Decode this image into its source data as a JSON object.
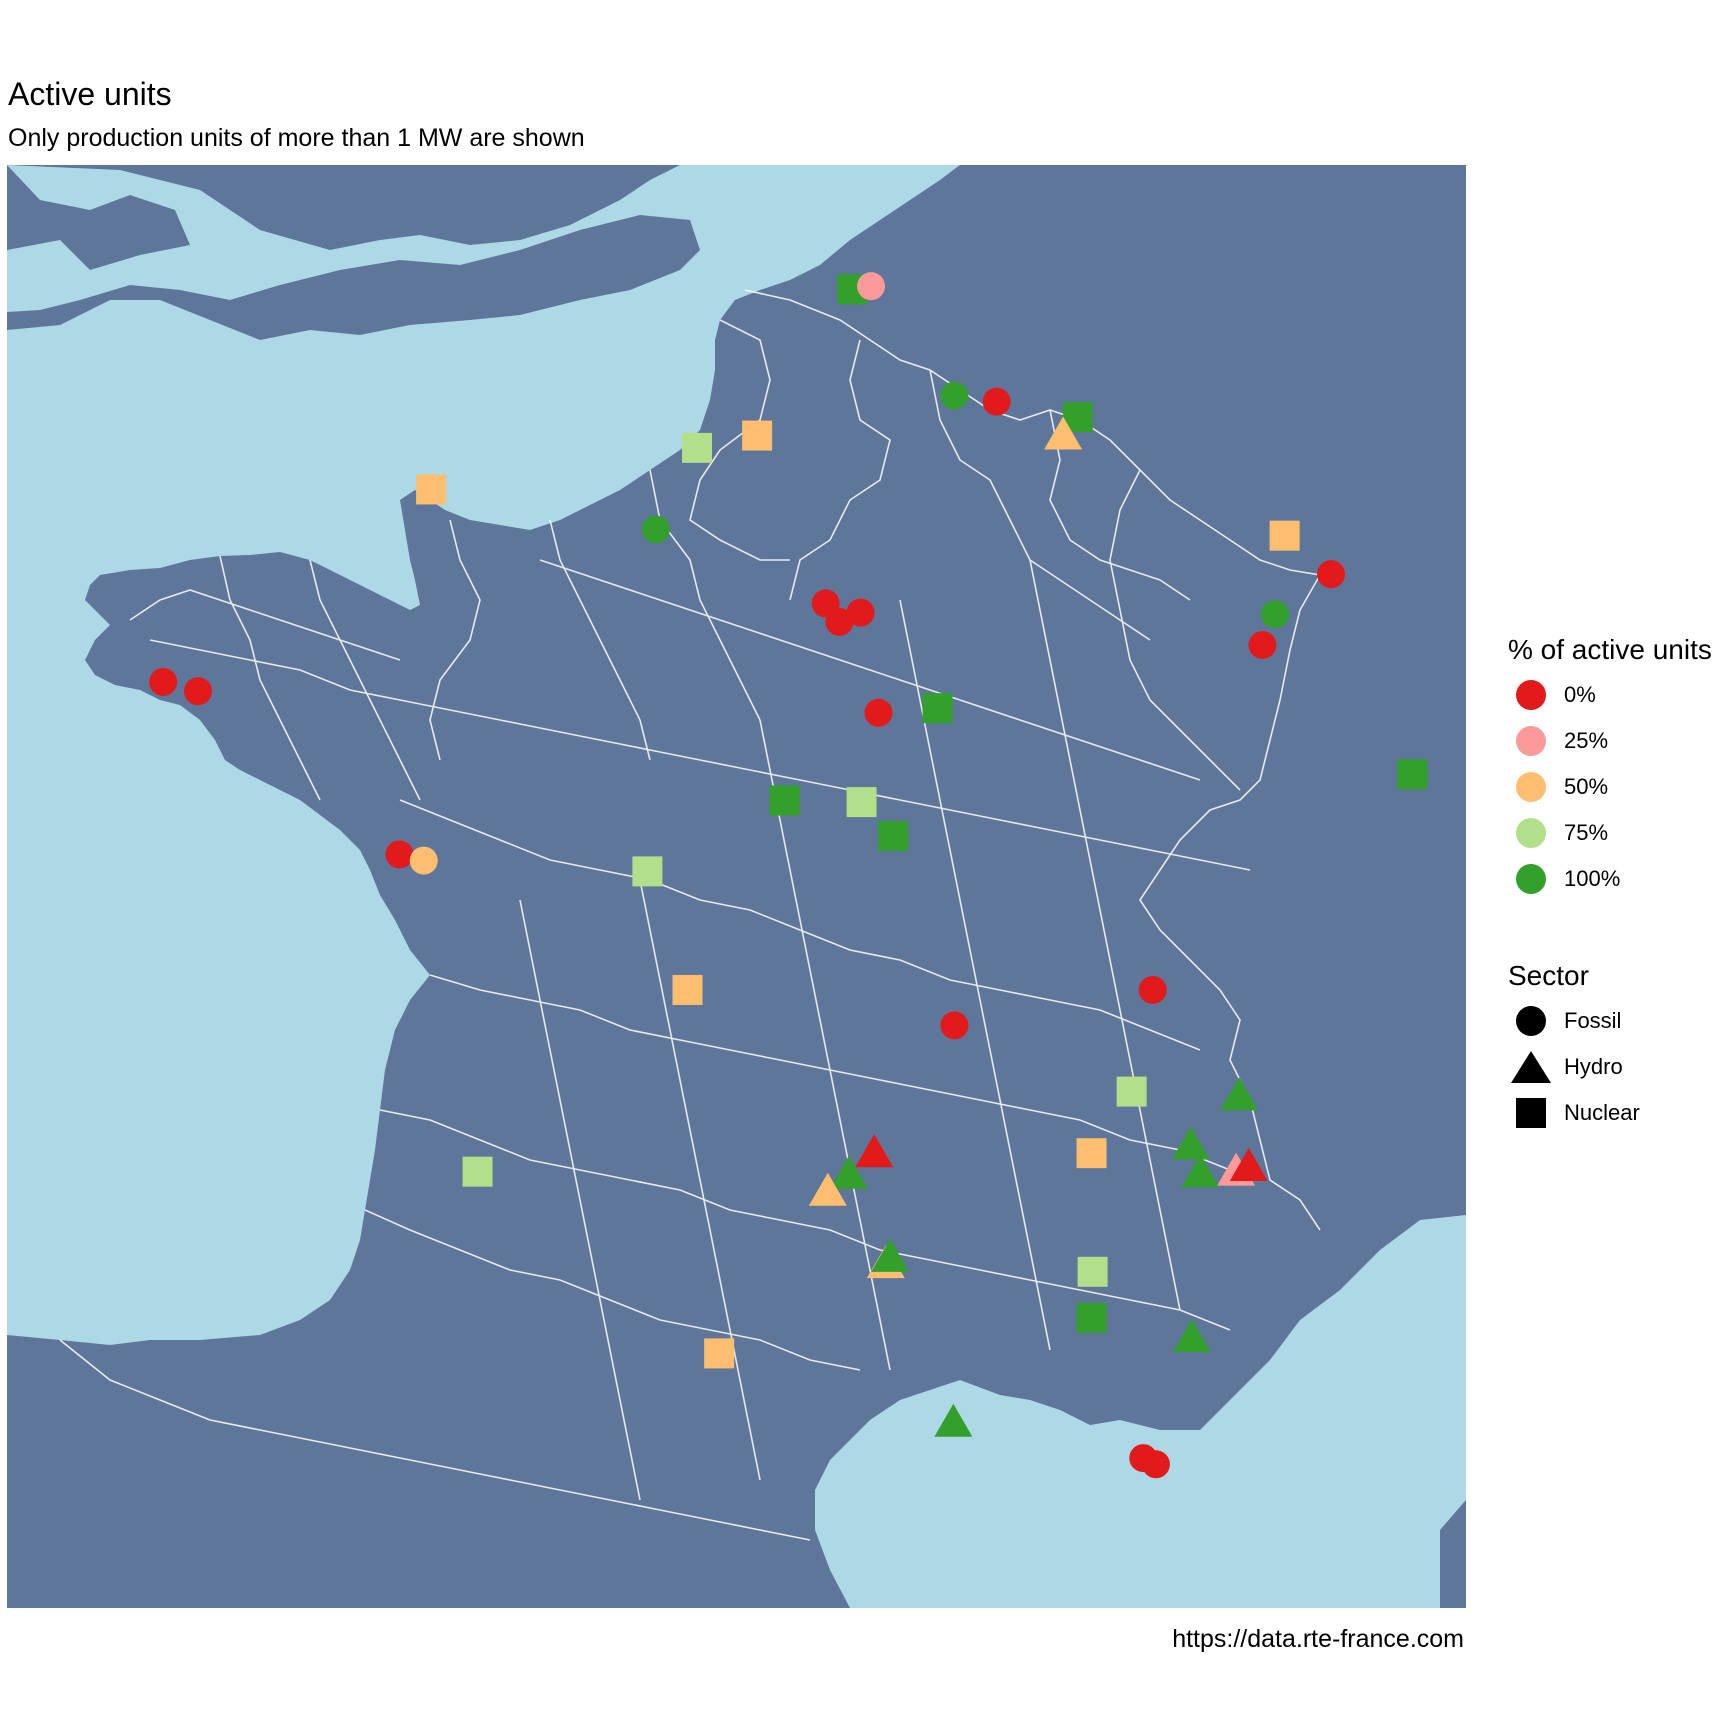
{
  "header": {
    "title": "Active units",
    "subtitle": "Only production units of more than 1 MW are shown"
  },
  "caption": "https://data.rte-france.com",
  "colors": {
    "land": "#5d7699",
    "sea": "#add8e6",
    "borders": "#ffffff",
    "pct_0": "#e31a1c",
    "pct_25": "#fb9a99",
    "pct_50": "#fdbf6f",
    "pct_75": "#b2df8a",
    "pct_100": "#33a02c"
  },
  "legend": {
    "color_title": "% of active units",
    "color_items": [
      {
        "label": "0%",
        "color": "#e31a1c"
      },
      {
        "label": "25%",
        "color": "#fb9a99"
      },
      {
        "label": "50%",
        "color": "#fdbf6f"
      },
      {
        "label": "75%",
        "color": "#b2df8a"
      },
      {
        "label": "100%",
        "color": "#33a02c"
      }
    ],
    "shape_title": "Sector",
    "shape_items": [
      {
        "label": "Fossil",
        "shape": "circle"
      },
      {
        "label": "Hydro",
        "shape": "triangle"
      },
      {
        "label": "Nuclear",
        "shape": "square"
      }
    ]
  },
  "units": [
    {
      "sector": "Nuclear",
      "pct": 100,
      "lon": 2.11,
      "lat": 51.01
    },
    {
      "sector": "Fossil",
      "pct": 25,
      "lon": 2.29,
      "lat": 51.03
    },
    {
      "sector": "Fossil",
      "pct": 100,
      "lon": 3.08,
      "lat": 50.32
    },
    {
      "sector": "Fossil",
      "pct": 0,
      "lon": 3.48,
      "lat": 50.28
    },
    {
      "sector": "Nuclear",
      "pct": 100,
      "lon": 4.25,
      "lat": 50.18
    },
    {
      "sector": "Hydro",
      "pct": 50,
      "lon": 4.11,
      "lat": 50.06
    },
    {
      "sector": "Nuclear",
      "pct": 75,
      "lon": 0.64,
      "lat": 49.98
    },
    {
      "sector": "Nuclear",
      "pct": 50,
      "lon": 1.21,
      "lat": 50.06
    },
    {
      "sector": "Nuclear",
      "pct": 50,
      "lon": -1.88,
      "lat": 49.71
    },
    {
      "sector": "Fossil",
      "pct": 100,
      "lon": 0.25,
      "lat": 49.45
    },
    {
      "sector": "Nuclear",
      "pct": 50,
      "lon": 6.21,
      "lat": 49.41
    },
    {
      "sector": "Fossil",
      "pct": 0,
      "lon": 6.65,
      "lat": 49.16
    },
    {
      "sector": "Fossil",
      "pct": 0,
      "lon": 1.86,
      "lat": 48.97
    },
    {
      "sector": "Fossil",
      "pct": 0,
      "lon": 1.99,
      "lat": 48.85
    },
    {
      "sector": "Fossil",
      "pct": 0,
      "lon": 2.19,
      "lat": 48.91
    },
    {
      "sector": "Fossil",
      "pct": 100,
      "lon": 6.12,
      "lat": 48.9
    },
    {
      "sector": "Fossil",
      "pct": 0,
      "lon": 6.0,
      "lat": 48.7
    },
    {
      "sector": "Fossil",
      "pct": 0,
      "lon": -4.42,
      "lat": 48.46
    },
    {
      "sector": "Fossil",
      "pct": 0,
      "lon": -4.09,
      "lat": 48.4
    },
    {
      "sector": "Fossil",
      "pct": 0,
      "lon": 2.36,
      "lat": 48.26
    },
    {
      "sector": "Nuclear",
      "pct": 100,
      "lon": 2.92,
      "lat": 48.29
    },
    {
      "sector": "Nuclear",
      "pct": 100,
      "lon": 7.42,
      "lat": 47.86
    },
    {
      "sector": "Nuclear",
      "pct": 100,
      "lon": 1.47,
      "lat": 47.69
    },
    {
      "sector": "Nuclear",
      "pct": 75,
      "lon": 2.2,
      "lat": 47.68
    },
    {
      "sector": "Nuclear",
      "pct": 100,
      "lon": 2.5,
      "lat": 47.46
    },
    {
      "sector": "Fossil",
      "pct": 0,
      "lon": -2.18,
      "lat": 47.34
    },
    {
      "sector": "Fossil",
      "pct": 50,
      "lon": -1.95,
      "lat": 47.3
    },
    {
      "sector": "Nuclear",
      "pct": 75,
      "lon": 0.17,
      "lat": 47.23
    },
    {
      "sector": "Nuclear",
      "pct": 50,
      "lon": 0.55,
      "lat": 46.46
    },
    {
      "sector": "Fossil",
      "pct": 0,
      "lon": 3.08,
      "lat": 46.23
    },
    {
      "sector": "Fossil",
      "pct": 0,
      "lon": 4.96,
      "lat": 46.46
    },
    {
      "sector": "Nuclear",
      "pct": 75,
      "lon": 4.76,
      "lat": 45.8
    },
    {
      "sector": "Hydro",
      "pct": 100,
      "lon": 5.78,
      "lat": 45.77
    },
    {
      "sector": "Hydro",
      "pct": 0,
      "lon": 2.32,
      "lat": 45.4
    },
    {
      "sector": "Hydro",
      "pct": 100,
      "lon": 2.08,
      "lat": 45.26
    },
    {
      "sector": "Hydro",
      "pct": 50,
      "lon": 1.88,
      "lat": 45.15
    },
    {
      "sector": "Nuclear",
      "pct": 50,
      "lon": 4.38,
      "lat": 45.4
    },
    {
      "sector": "Hydro",
      "pct": 100,
      "lon": 5.32,
      "lat": 45.45
    },
    {
      "sector": "Hydro",
      "pct": 100,
      "lon": 5.41,
      "lat": 45.27
    },
    {
      "sector": "Hydro",
      "pct": 25,
      "lon": 5.75,
      "lat": 45.28
    },
    {
      "sector": "Hydro",
      "pct": 0,
      "lon": 5.87,
      "lat": 45.31
    },
    {
      "sector": "Nuclear",
      "pct": 75,
      "lon": -1.44,
      "lat": 45.28
    },
    {
      "sector": "Hydro",
      "pct": 50,
      "lon": 2.43,
      "lat": 44.68
    },
    {
      "sector": "Hydro",
      "pct": 100,
      "lon": 2.47,
      "lat": 44.72
    },
    {
      "sector": "Nuclear",
      "pct": 75,
      "lon": 4.39,
      "lat": 44.63
    },
    {
      "sector": "Nuclear",
      "pct": 100,
      "lon": 4.38,
      "lat": 44.33
    },
    {
      "sector": "Hydro",
      "pct": 100,
      "lon": 5.33,
      "lat": 44.2
    },
    {
      "sector": "Nuclear",
      "pct": 50,
      "lon": 0.85,
      "lat": 44.1
    },
    {
      "sector": "Hydro",
      "pct": 100,
      "lon": 3.07,
      "lat": 43.65
    },
    {
      "sector": "Fossil",
      "pct": 0,
      "lon": 4.87,
      "lat": 43.42
    },
    {
      "sector": "Fossil",
      "pct": 0,
      "lon": 4.99,
      "lat": 43.38
    }
  ]
}
